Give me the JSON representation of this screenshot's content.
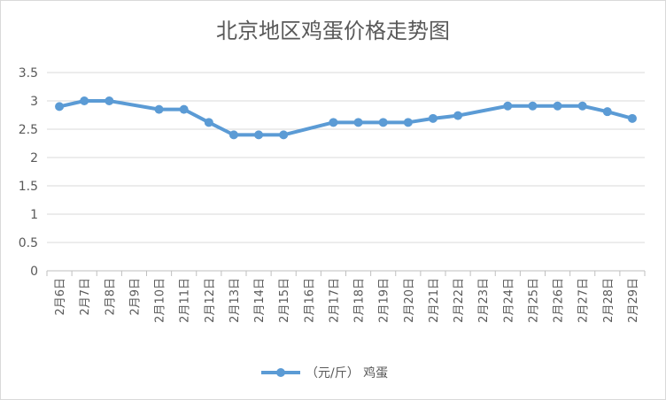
{
  "chart_data": {
    "type": "line",
    "title": "北京地区鸡蛋价格走势图",
    "xlabel": "",
    "ylabel": "",
    "categories": [
      "2月6日",
      "2月7日",
      "2月8日",
      "2月9日",
      "2月10日",
      "2月11日",
      "2月12日",
      "2月13日",
      "2月14日",
      "2月15日",
      "2月16日",
      "2月17日",
      "2月18日",
      "2月19日",
      "2月20日",
      "2月21日",
      "2月22日",
      "2月23日",
      "2月24日",
      "2月25日",
      "2月26日",
      "2月27日",
      "2月28日",
      "2月29日"
    ],
    "series": [
      {
        "name": "（元/斤） 鸡蛋",
        "values": [
          2.9,
          3.0,
          3.0,
          null,
          2.85,
          2.85,
          2.62,
          2.4,
          2.4,
          2.4,
          null,
          2.62,
          2.62,
          2.62,
          2.62,
          2.69,
          2.74,
          null,
          2.91,
          2.91,
          2.91,
          2.91,
          2.81,
          2.69
        ]
      }
    ],
    "ylim": [
      0,
      3.5
    ],
    "yticks": [
      "0",
      "0.5",
      "1",
      "1.5",
      "2",
      "2.5",
      "3",
      "3.5"
    ],
    "grid": true,
    "legend": "bottom",
    "color": "#5b9bd5"
  }
}
